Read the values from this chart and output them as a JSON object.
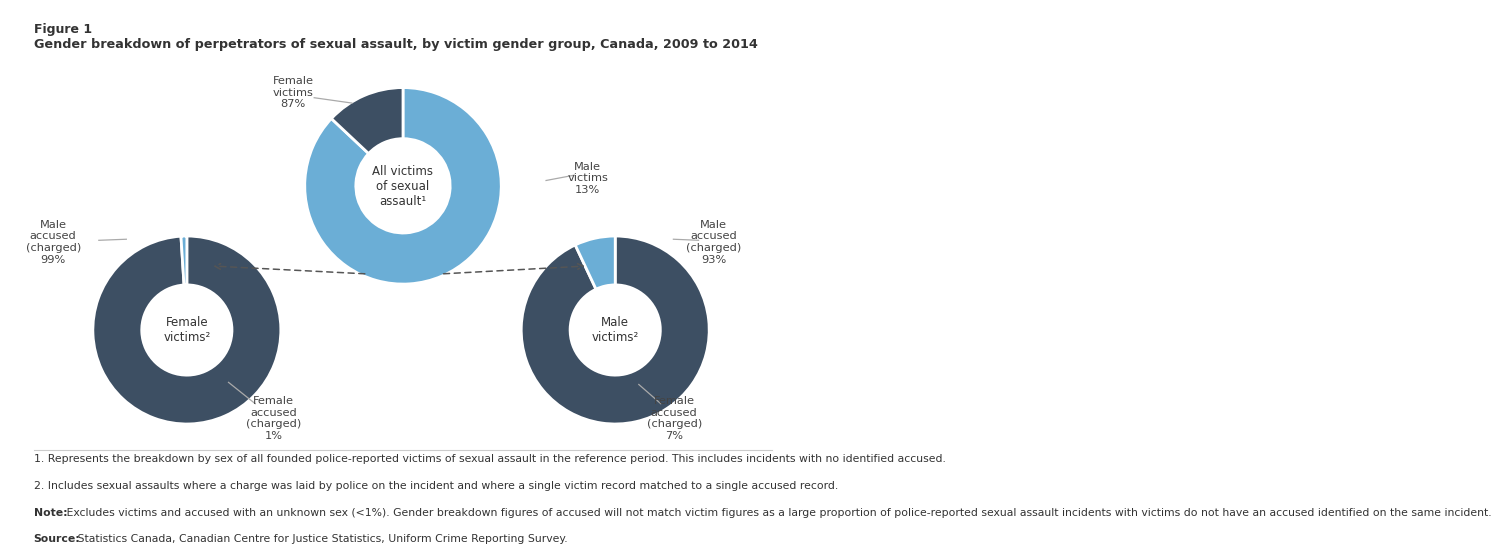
{
  "figure_label": "Figure 1",
  "title": "Gender breakdown of perpetrators of sexual assault, by victim gender group, Canada, 2009 to 2014",
  "top_pie": {
    "values": [
      87,
      13
    ],
    "colors": [
      "#6baed6",
      "#3d4f63"
    ],
    "center_label": "All victims\nof sexual\nassault¹",
    "startangle": 90
  },
  "left_pie": {
    "values": [
      99,
      1
    ],
    "colors": [
      "#3d4f63",
      "#6baed6"
    ],
    "center_label": "Female\nvictims²",
    "startangle": 90
  },
  "right_pie": {
    "values": [
      93,
      7
    ],
    "colors": [
      "#3d4f63",
      "#6baed6"
    ],
    "center_label": "Male\nvictims²",
    "startangle": 90
  },
  "footnote1": "1. Represents the breakdown by sex of all founded police-reported victims of sexual assault in the reference period. This includes incidents with no identified accused.",
  "footnote2": "2. Includes sexual assaults where a charge was laid by police on the incident and where a single victim record matched to a single accused record.",
  "note_bold": "Note:",
  "note_rest": " Excludes victims and accused with an unknown sex (<1%). Gender breakdown figures of accused will not match victim figures as a large proportion of police-reported sexual assault incidents with victims do not have an accused identified on the same incident.",
  "source_bold": "Source:",
  "source_rest": " Statistics Canada, Canadian Centre for Justice Statistics, Uniform Crime Reporting Survey.",
  "bg_color": "#ffffff",
  "text_color": "#404040",
  "dark_color": "#3d4f63",
  "light_blue": "#6baed6"
}
